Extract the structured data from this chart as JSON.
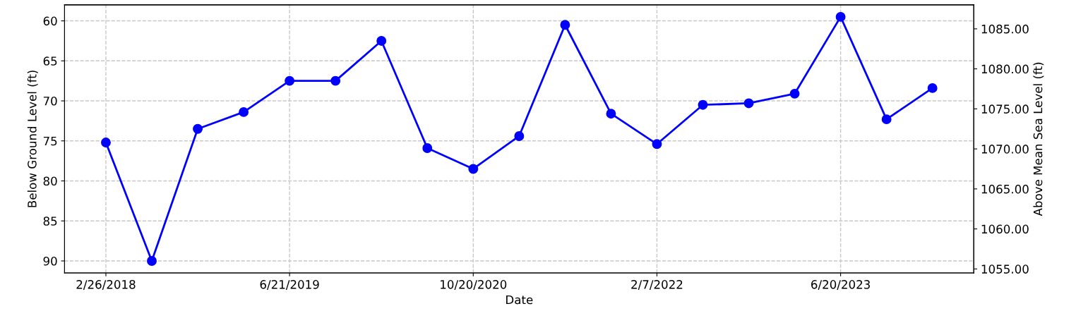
{
  "chart_data": {
    "type": "line",
    "xlabel": "Date",
    "ylabel": "Below Ground Level (ft)",
    "y2label": "Above Mean Sea Level (ft)",
    "categories": [
      "2/26/2018",
      null,
      null,
      null,
      "6/21/2019",
      null,
      null,
      null,
      "10/20/2020",
      null,
      null,
      null,
      "2/7/2022",
      null,
      null,
      null,
      "6/20/2023",
      null,
      null
    ],
    "series": [
      {
        "color": "#0000ff",
        "values": [
          75.2,
          90.0,
          73.5,
          71.4,
          67.5,
          67.5,
          62.5,
          75.9,
          78.5,
          74.4,
          60.5,
          71.6,
          75.4,
          70.5,
          70.3,
          69.1,
          59.5,
          72.3,
          68.4
        ]
      }
    ],
    "ylim": [
      91.5,
      58.0
    ],
    "yticks": [
      60,
      65,
      70,
      75,
      80,
      85,
      90
    ],
    "y2lim": [
      1054.5,
      1088.0
    ],
    "y2ticks": [
      {
        "value": 1055,
        "label": "1055.00"
      },
      {
        "value": 1060,
        "label": "1060.00"
      },
      {
        "value": 1065,
        "label": "1065.00"
      },
      {
        "value": 1070,
        "label": "1070.00"
      },
      {
        "value": 1075,
        "label": "1075.00"
      },
      {
        "value": 1080,
        "label": "1080.00"
      },
      {
        "value": 1085,
        "label": "1085.00"
      }
    ],
    "grid": true,
    "marker": "circle",
    "line_style": "solid",
    "legend": false
  }
}
